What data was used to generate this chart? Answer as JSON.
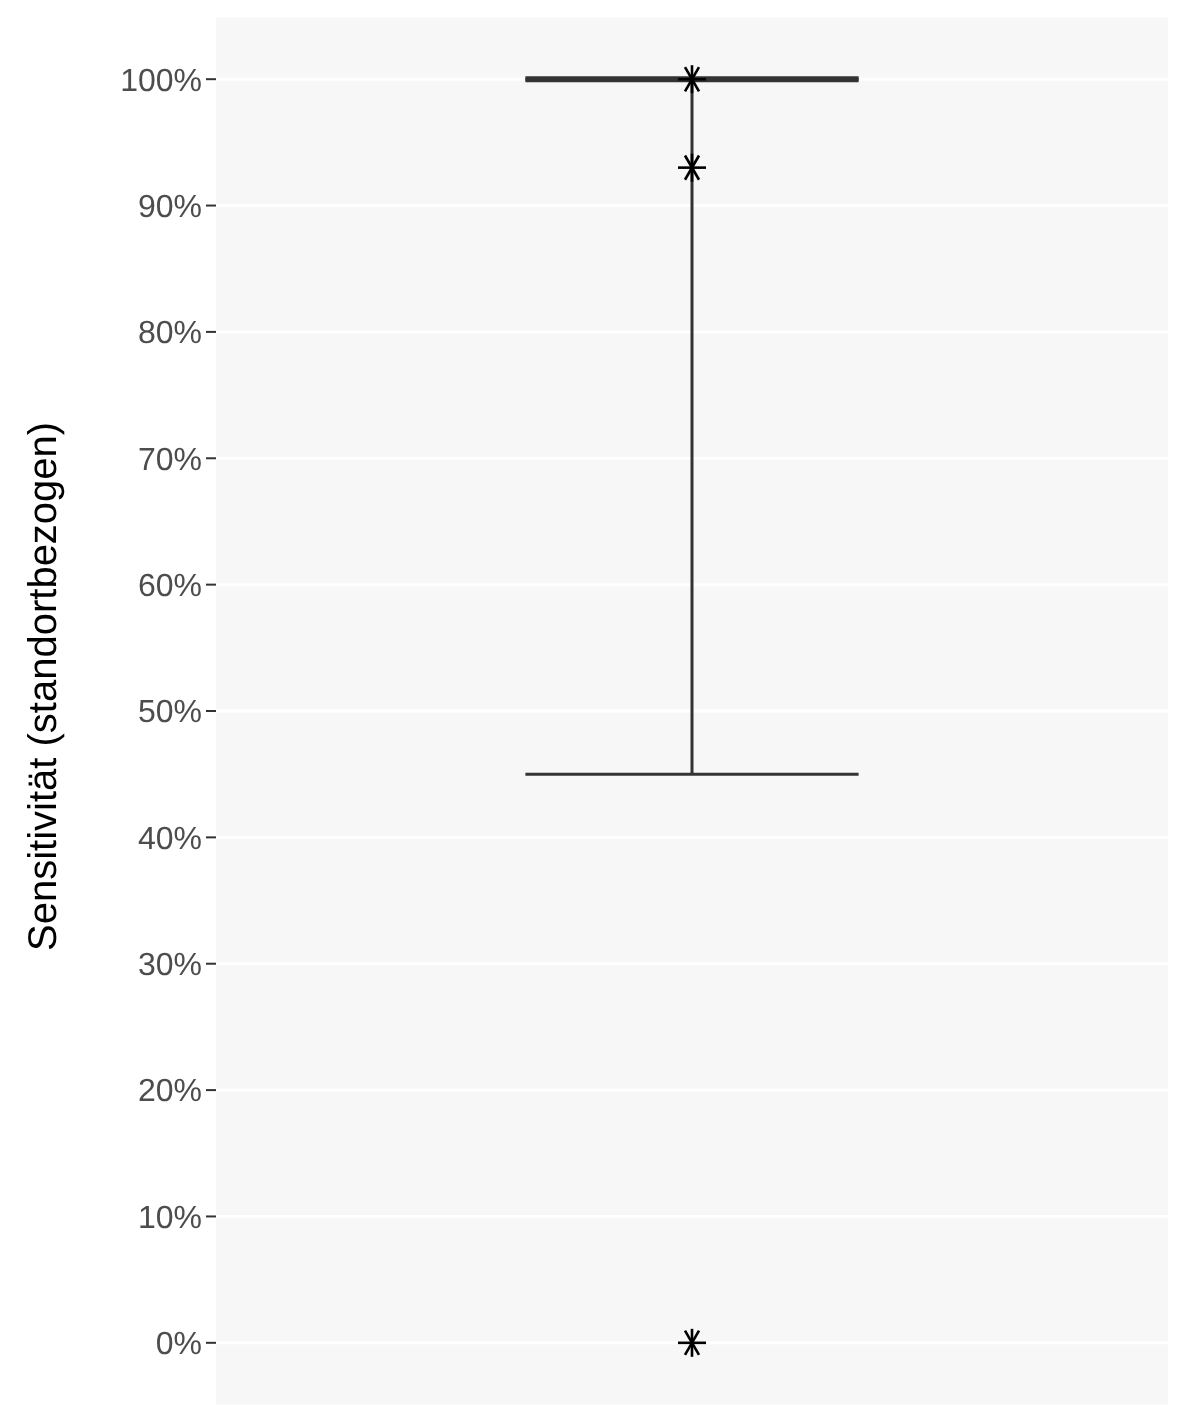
{
  "chart_data": {
    "type": "box",
    "ylabel": "Sensitivität (standortbezogen)",
    "categories": [
      null
    ],
    "boxes": [
      {
        "low": 45,
        "q1": 100,
        "median": 100,
        "q3": 100,
        "high": 100
      }
    ],
    "series": [
      {
        "type": "scatter",
        "color": "#000000",
        "x": [
          null,
          null,
          null
        ],
        "values": [
          100,
          93,
          0
        ],
        "marker": "cross"
      }
    ],
    "ylim": [
      -5,
      105
    ],
    "yticks": [
      {
        "value": 0,
        "label": "0%"
      },
      {
        "value": 10,
        "label": "10%"
      },
      {
        "value": 20,
        "label": "20%"
      },
      {
        "value": 30,
        "label": "30%"
      },
      {
        "value": 40,
        "label": "40%"
      },
      {
        "value": 50,
        "label": "50%"
      },
      {
        "value": 60,
        "label": "60%"
      },
      {
        "value": 70,
        "label": "70%"
      },
      {
        "value": 80,
        "label": "80%"
      },
      {
        "value": 90,
        "label": "90%"
      },
      {
        "value": 100,
        "label": "100%"
      }
    ],
    "grid": "y",
    "tick_labels": "y"
  }
}
